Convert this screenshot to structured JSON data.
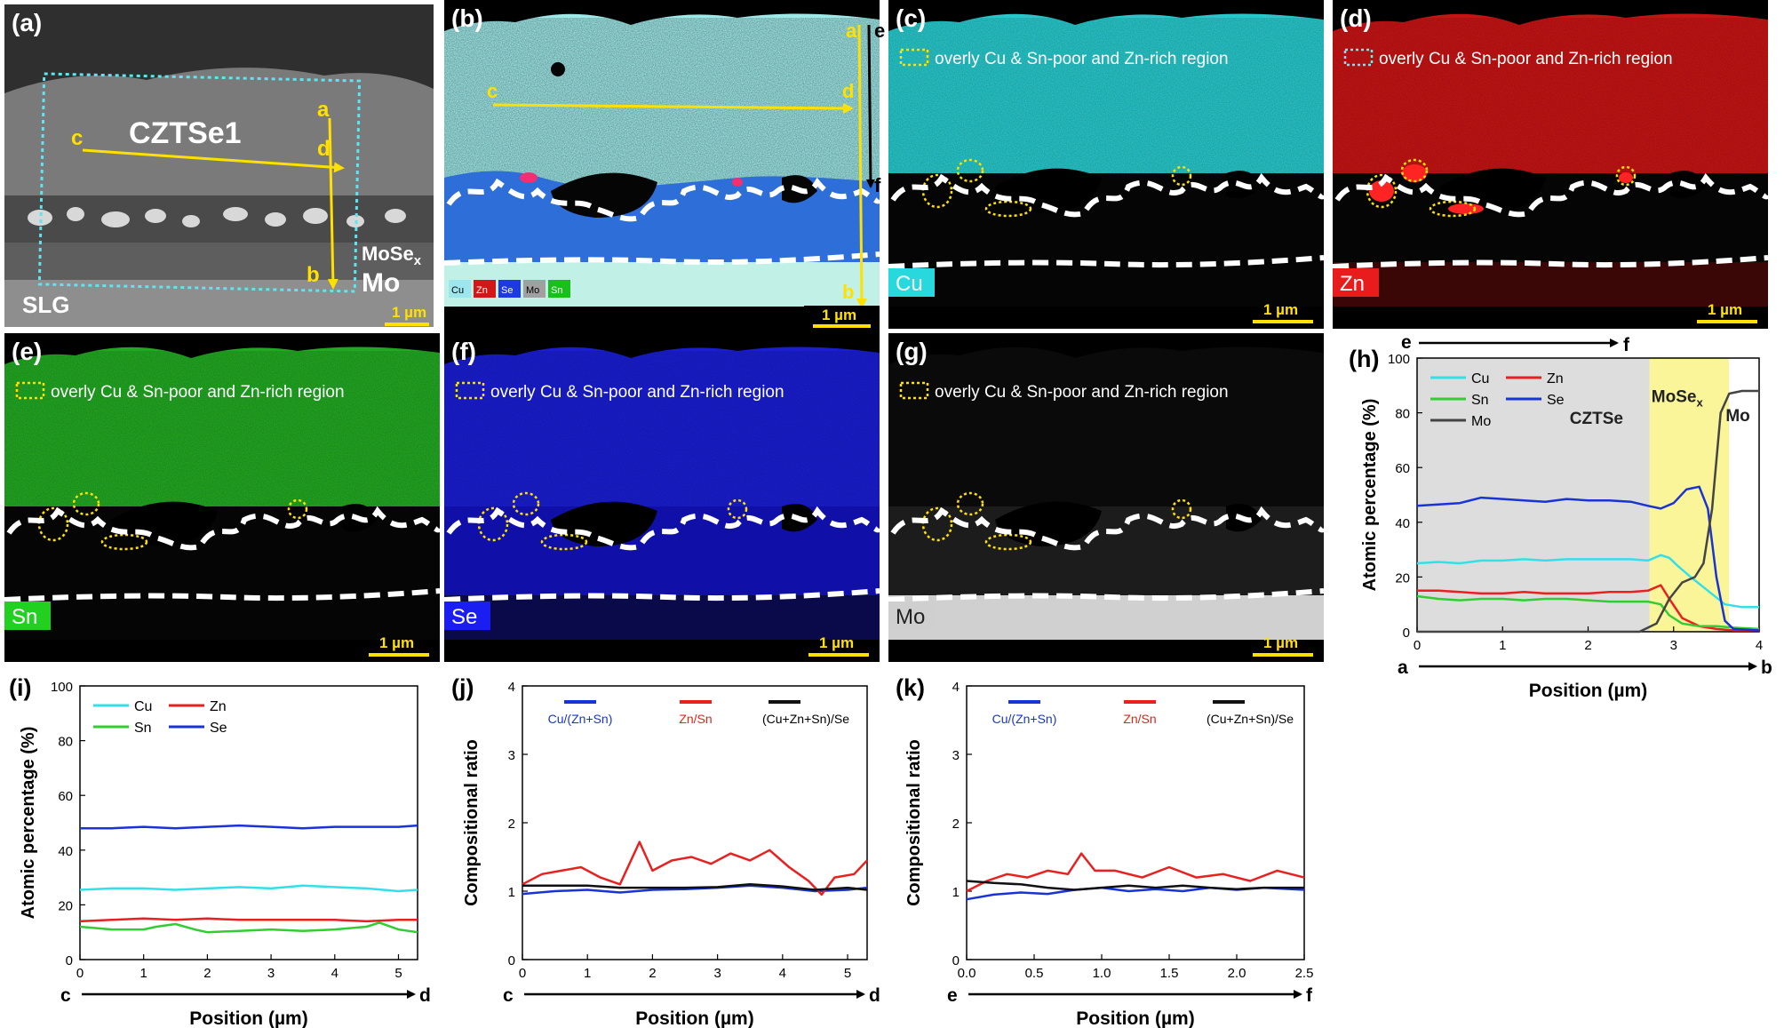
{
  "panels": {
    "a": {
      "label": "(a)",
      "layer_label": "CZTSe1",
      "mose_label": "MoSe",
      "mose_sub": "x",
      "mo_label": "Mo",
      "slg_label": "SLG",
      "scale": "1 µm",
      "pts": [
        "a",
        "d",
        "b",
        "c"
      ]
    },
    "b": {
      "label": "(b)",
      "scale": "1 µm",
      "pts": [
        "a",
        "e",
        "c",
        "d",
        "f",
        "b"
      ],
      "legend": [
        "Cu",
        "Zn",
        "Se",
        "Mo",
        "Sn"
      ],
      "colors": [
        "#9ee6ee",
        "#d01818",
        "#1c3ae0",
        "#a0a0a0",
        "#1bbf1b"
      ]
    },
    "c": {
      "label": "(c)",
      "element": "Cu",
      "color": "#27c6c9",
      "note": "overly Cu & Sn-poor and Zn-rich region",
      "scale": "1 µm"
    },
    "d": {
      "label": "(d)",
      "element": "Zn",
      "color": "#c41414",
      "note": "overly Cu & Sn-poor and Zn-rich region",
      "scale": "1 µm"
    },
    "e": {
      "label": "(e)",
      "element": "Sn",
      "color": "#22a722",
      "note": "overly Cu & Sn-poor and Zn-rich region",
      "scale": "1 µm"
    },
    "f": {
      "label": "(f)",
      "element": "Se",
      "color": "#1a1ed0",
      "note": "overly Cu & Sn-poor and Zn-rich region",
      "scale": "1 µm"
    },
    "g": {
      "label": "(g)",
      "element": "Mo",
      "color": "#8a8a8a",
      "note": "overly Cu & Sn-poor and Zn-rich region",
      "scale": "1 µm"
    }
  },
  "arrows": {
    "h_top": [
      "e",
      "f"
    ],
    "h_bottom": [
      "a",
      "b"
    ],
    "i": [
      "c",
      "d"
    ],
    "j": [
      "c",
      "d"
    ],
    "k": [
      "e",
      "f"
    ]
  },
  "chart_data": [
    {
      "id": "h",
      "label": "(h)",
      "type": "line",
      "xlabel": "Position (µm)",
      "ylabel": "Atomic percentage (%)",
      "xlim": [
        0,
        4
      ],
      "ylim": [
        0,
        100
      ],
      "xticks": [
        0,
        1,
        2,
        3,
        4
      ],
      "yticks": [
        0,
        20,
        40,
        60,
        80,
        100
      ],
      "regions": [
        {
          "label": "CZTSe",
          "x0": 0,
          "x1": 2.72,
          "color": "#dddddd"
        },
        {
          "label": "MoSe",
          "sub": "x",
          "x0": 2.72,
          "x1": 3.65,
          "color": "#fbf59a"
        },
        {
          "label": "Mo",
          "x0": 3.65,
          "x1": 4,
          "color": "#ffffff"
        }
      ],
      "legend_cols": 2,
      "series": [
        {
          "name": "Cu",
          "color": "#33e0e8",
          "x": [
            0,
            0.25,
            0.5,
            0.75,
            1,
            1.25,
            1.5,
            1.75,
            2,
            2.25,
            2.5,
            2.7,
            2.85,
            2.95,
            3.05,
            3.2,
            3.4,
            3.6,
            3.8,
            4
          ],
          "y": [
            25,
            25.5,
            25,
            26,
            26,
            26.5,
            26,
            26.5,
            26.5,
            26.5,
            26.5,
            26,
            28,
            27,
            24,
            20,
            15,
            10,
            9,
            9
          ]
        },
        {
          "name": "Zn",
          "color": "#e82020",
          "x": [
            0,
            0.25,
            0.5,
            0.75,
            1,
            1.25,
            1.5,
            1.75,
            2,
            2.25,
            2.5,
            2.7,
            2.85,
            2.95,
            3.1,
            3.3,
            3.5,
            3.7,
            4
          ],
          "y": [
            15,
            15,
            14.5,
            14,
            14,
            14.5,
            14,
            14,
            14,
            14.5,
            14.5,
            15,
            17,
            12,
            5,
            2,
            1,
            0.5,
            0.5
          ]
        },
        {
          "name": "Sn",
          "color": "#33cc33",
          "x": [
            0,
            0.25,
            0.5,
            0.75,
            1,
            1.25,
            1.5,
            1.75,
            2,
            2.25,
            2.5,
            2.7,
            2.85,
            2.95,
            3.1,
            3.3,
            3.5,
            3.7,
            4
          ],
          "y": [
            13,
            12,
            11.5,
            12,
            12,
            11.5,
            12,
            12,
            11.5,
            11,
            11,
            11,
            10,
            6,
            3,
            2,
            2,
            1.5,
            1
          ]
        },
        {
          "name": "Se",
          "color": "#1a33d6",
          "x": [
            0,
            0.25,
            0.5,
            0.75,
            1,
            1.25,
            1.5,
            1.75,
            2,
            2.25,
            2.5,
            2.7,
            2.85,
            3.0,
            3.15,
            3.3,
            3.4,
            3.5,
            3.6,
            3.7,
            4
          ],
          "y": [
            46,
            46.5,
            47,
            49,
            48.5,
            48,
            47.5,
            48.5,
            48,
            48,
            47.5,
            46,
            45,
            47,
            52,
            53,
            45,
            20,
            4,
            1,
            0.5
          ]
        },
        {
          "name": "Mo",
          "color": "#444444",
          "x": [
            0,
            2.6,
            2.8,
            2.95,
            3.1,
            3.25,
            3.35,
            3.45,
            3.55,
            3.65,
            3.8,
            4
          ],
          "y": [
            0,
            0,
            3,
            12,
            18,
            20,
            25,
            45,
            80,
            87,
            88,
            88
          ]
        }
      ]
    },
    {
      "id": "i",
      "label": "(i)",
      "type": "line",
      "xlabel": "Position (µm)",
      "ylabel": "Atomic percentage (%)",
      "xlim": [
        0,
        5.3
      ],
      "ylim": [
        0,
        100
      ],
      "xticks": [
        0,
        1,
        2,
        3,
        4,
        5
      ],
      "yticks": [
        0,
        20,
        40,
        60,
        80,
        100
      ],
      "legend_cols": 2,
      "series": [
        {
          "name": "Cu",
          "color": "#33e0e8",
          "x": [
            0,
            0.5,
            1,
            1.5,
            2,
            2.5,
            3,
            3.5,
            4,
            4.5,
            5,
            5.3
          ],
          "y": [
            25.5,
            26,
            26,
            25.5,
            26,
            26.5,
            26,
            27,
            26.5,
            26,
            25,
            25.5
          ]
        },
        {
          "name": "Zn",
          "color": "#e82020",
          "x": [
            0,
            0.5,
            1,
            1.5,
            2,
            2.5,
            3,
            3.5,
            4,
            4.5,
            5,
            5.3
          ],
          "y": [
            14,
            14.5,
            15,
            14.5,
            15,
            14.5,
            14.5,
            14.5,
            14.5,
            14,
            14.5,
            14.5
          ]
        },
        {
          "name": "Sn",
          "color": "#33cc33",
          "x": [
            0,
            0.5,
            1,
            1.2,
            1.5,
            1.8,
            2,
            2.5,
            3,
            3.5,
            4,
            4.5,
            4.7,
            5,
            5.3
          ],
          "y": [
            12,
            11,
            11,
            12,
            13,
            11,
            10,
            10.5,
            11,
            10.5,
            11,
            12,
            13.5,
            11,
            10
          ]
        },
        {
          "name": "Se",
          "color": "#1a33d6",
          "x": [
            0,
            0.5,
            1,
            1.5,
            2,
            2.5,
            3,
            3.5,
            4,
            4.5,
            5,
            5.3
          ],
          "y": [
            48,
            48,
            48.5,
            48,
            48.5,
            49,
            48.5,
            48,
            48.5,
            48.5,
            48.5,
            49
          ]
        }
      ]
    },
    {
      "id": "j",
      "label": "(j)",
      "type": "line",
      "xlabel": "Position (µm)",
      "ylabel": "Compositional ratio",
      "xlim": [
        0,
        5.3
      ],
      "ylim": [
        0,
        4
      ],
      "xticks": [
        0,
        1,
        2,
        3,
        4,
        5
      ],
      "yticks": [
        0,
        1,
        2,
        3,
        4
      ],
      "legend_cols": 3,
      "series": [
        {
          "name": "Cu/(Zn+Sn)",
          "color": "#1a33d6",
          "x": [
            0,
            0.5,
            1,
            1.5,
            2,
            2.5,
            3,
            3.5,
            4,
            4.5,
            5,
            5.3
          ],
          "y": [
            0.96,
            1.0,
            1.02,
            0.98,
            1.02,
            1.03,
            1.05,
            1.08,
            1.05,
            1.0,
            1.02,
            1.05
          ]
        },
        {
          "name": "Zn/Sn",
          "color": "#e82020",
          "x": [
            0,
            0.3,
            0.6,
            0.9,
            1.2,
            1.5,
            1.8,
            2.0,
            2.3,
            2.6,
            2.9,
            3.2,
            3.5,
            3.8,
            4.1,
            4.4,
            4.6,
            4.8,
            5.1,
            5.3
          ],
          "y": [
            1.1,
            1.25,
            1.3,
            1.35,
            1.2,
            1.1,
            1.72,
            1.3,
            1.45,
            1.5,
            1.4,
            1.55,
            1.45,
            1.6,
            1.35,
            1.15,
            0.95,
            1.2,
            1.25,
            1.45
          ]
        },
        {
          "name": "(Cu+Zn+Sn)/Se",
          "color": "#111111",
          "x": [
            0,
            0.5,
            1,
            1.5,
            2,
            2.5,
            3,
            3.5,
            4,
            4.5,
            5,
            5.3
          ],
          "y": [
            1.08,
            1.08,
            1.08,
            1.05,
            1.05,
            1.05,
            1.06,
            1.1,
            1.07,
            1.02,
            1.05,
            1.02
          ]
        }
      ]
    },
    {
      "id": "k",
      "label": "(k)",
      "type": "line",
      "xlabel": "Position (µm)",
      "ylabel": "Compositional ratio",
      "xlim": [
        0,
        2.5
      ],
      "ylim": [
        0,
        4
      ],
      "xticks": [
        0,
        0.5,
        1,
        1.5,
        2,
        2.5
      ],
      "xticklabels": [
        "0.0",
        "0.5",
        "1.0",
        "1.5",
        "2.0",
        "2.5"
      ],
      "yticks": [
        0,
        1,
        2,
        3,
        4
      ],
      "legend_cols": 3,
      "series": [
        {
          "name": "Cu/(Zn+Sn)",
          "color": "#1a33d6",
          "x": [
            0,
            0.2,
            0.4,
            0.6,
            0.8,
            1.0,
            1.2,
            1.4,
            1.6,
            1.8,
            2.0,
            2.2,
            2.5
          ],
          "y": [
            0.88,
            0.95,
            0.98,
            0.96,
            1.02,
            1.05,
            1.0,
            1.03,
            1.0,
            1.05,
            1.02,
            1.05,
            1.02
          ]
        },
        {
          "name": "Zn/Sn",
          "color": "#e82020",
          "x": [
            0,
            0.15,
            0.3,
            0.45,
            0.6,
            0.75,
            0.85,
            0.95,
            1.1,
            1.3,
            1.5,
            1.7,
            1.9,
            2.1,
            2.3,
            2.5
          ],
          "y": [
            1.0,
            1.15,
            1.25,
            1.2,
            1.3,
            1.25,
            1.55,
            1.3,
            1.3,
            1.2,
            1.35,
            1.2,
            1.25,
            1.15,
            1.3,
            1.2
          ]
        },
        {
          "name": "(Cu+Zn+Sn)/Se",
          "color": "#111111",
          "x": [
            0,
            0.2,
            0.4,
            0.6,
            0.8,
            1.0,
            1.2,
            1.4,
            1.6,
            1.8,
            2.0,
            2.2,
            2.5
          ],
          "y": [
            1.15,
            1.12,
            1.1,
            1.05,
            1.02,
            1.05,
            1.08,
            1.05,
            1.08,
            1.05,
            1.03,
            1.05,
            1.05
          ]
        }
      ]
    }
  ]
}
